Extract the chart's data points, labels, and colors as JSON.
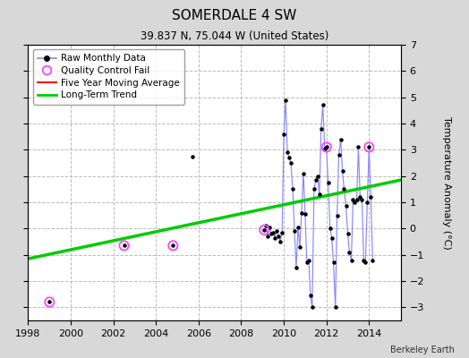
{
  "title": "SOMERDALE 4 SW",
  "subtitle": "39.837 N, 75.044 W (United States)",
  "ylabel": "Temperature Anomaly (°C)",
  "credit": "Berkeley Earth",
  "xlim": [
    1998,
    2015.5
  ],
  "ylim": [
    -3.5,
    7
  ],
  "yticks": [
    -3,
    -2,
    -1,
    0,
    1,
    2,
    3,
    4,
    5,
    6,
    7
  ],
  "xticks": [
    1998,
    2000,
    2002,
    2004,
    2006,
    2008,
    2010,
    2012,
    2014
  ],
  "bg_color": "#d8d8d8",
  "plot_bg_color": "#ffffff",
  "grid_color": "#bbbbbb",
  "grid_linestyle": "--",
  "raw_line_color": "#8888ff",
  "raw_dot_color": "#000000",
  "qc_fail_color": "#ff44ff",
  "moving_avg_color": "#ff0000",
  "trend_color": "#00cc00",
  "isolated_points": [
    [
      1999.0,
      -2.8
    ],
    [
      2002.5,
      -0.65
    ],
    [
      2004.8,
      -0.65
    ],
    [
      2005.7,
      2.75
    ]
  ],
  "connected_segments": [
    [
      [
        2009.08,
        -0.05
      ],
      [
        2009.17,
        0.1
      ],
      [
        2009.25,
        -0.3
      ],
      [
        2009.33,
        0.05
      ],
      [
        2009.42,
        -0.2
      ],
      [
        2009.5,
        -0.15
      ],
      [
        2009.58,
        -0.35
      ],
      [
        2009.67,
        -0.1
      ],
      [
        2009.75,
        -0.3
      ],
      [
        2009.83,
        -0.5
      ],
      [
        2009.92,
        -0.15
      ],
      [
        2010.0,
        3.6
      ],
      [
        2010.08,
        4.9
      ],
      [
        2010.17,
        2.9
      ],
      [
        2010.25,
        2.7
      ],
      [
        2010.33,
        2.5
      ],
      [
        2010.42,
        1.5
      ],
      [
        2010.5,
        -0.1
      ],
      [
        2010.58,
        -1.5
      ],
      [
        2010.67,
        0.05
      ],
      [
        2010.75,
        -0.7
      ],
      [
        2010.83,
        0.6
      ],
      [
        2010.92,
        2.1
      ],
      [
        2011.0,
        0.55
      ],
      [
        2011.08,
        -1.3
      ],
      [
        2011.17,
        -1.2
      ],
      [
        2011.25,
        -2.55
      ],
      [
        2011.33,
        -3.0
      ],
      [
        2011.42,
        1.5
      ],
      [
        2011.5,
        1.85
      ],
      [
        2011.58,
        2.0
      ],
      [
        2011.67,
        1.3
      ],
      [
        2011.75,
        3.8
      ],
      [
        2011.83,
        4.7
      ],
      [
        2011.92,
        3.05
      ],
      [
        2012.0,
        3.1
      ],
      [
        2012.08,
        1.75
      ],
      [
        2012.17,
        0.0
      ],
      [
        2012.25,
        -0.35
      ],
      [
        2012.33,
        -1.3
      ],
      [
        2012.42,
        -3.0
      ],
      [
        2012.5,
        0.5
      ],
      [
        2012.58,
        2.8
      ],
      [
        2012.67,
        3.4
      ],
      [
        2012.75,
        2.2
      ],
      [
        2012.83,
        1.5
      ],
      [
        2012.92,
        0.85
      ],
      [
        2013.0,
        -0.2
      ],
      [
        2013.08,
        -0.9
      ],
      [
        2013.17,
        -1.2
      ],
      [
        2013.25,
        1.1
      ],
      [
        2013.33,
        1.0
      ],
      [
        2013.42,
        1.1
      ],
      [
        2013.5,
        3.1
      ],
      [
        2013.58,
        1.2
      ],
      [
        2013.67,
        1.1
      ],
      [
        2013.75,
        -1.2
      ],
      [
        2013.83,
        -1.3
      ],
      [
        2013.92,
        1.0
      ],
      [
        2014.0,
        3.1
      ],
      [
        2014.08,
        1.2
      ],
      [
        2014.17,
        -1.2
      ]
    ]
  ],
  "qc_fail_points": [
    [
      1999.0,
      -2.8
    ],
    [
      2002.5,
      -0.65
    ],
    [
      2004.8,
      -0.65
    ],
    [
      2009.08,
      -0.05
    ],
    [
      2012.0,
      3.1
    ],
    [
      2014.0,
      3.1
    ]
  ],
  "trend_x": [
    1998.0,
    2015.5
  ],
  "trend_y": [
    -1.15,
    1.85
  ]
}
